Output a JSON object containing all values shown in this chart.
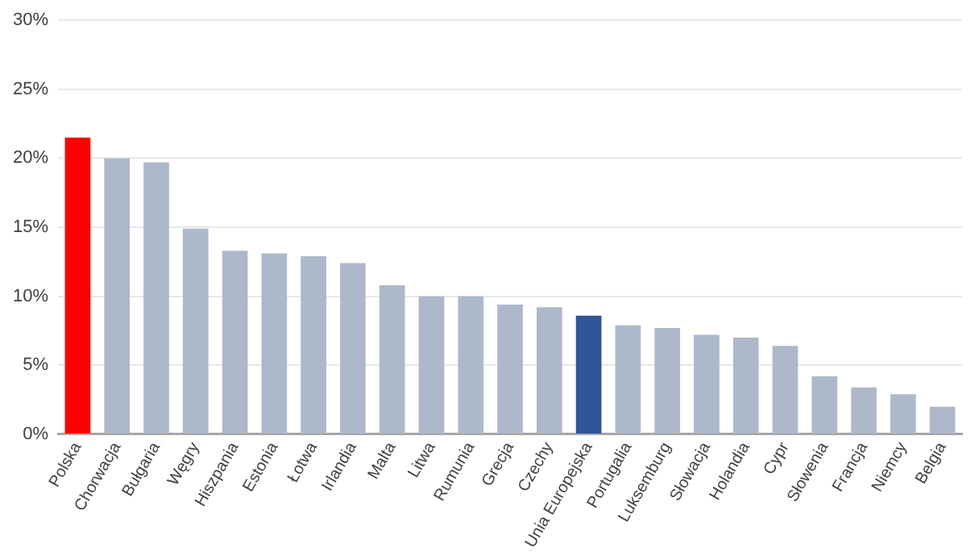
{
  "chart_data": {
    "type": "bar",
    "categories": [
      "Polska",
      "Chorwacja",
      "Bułgaria",
      "Węgry",
      "Hiszpania",
      "Estonia",
      "Łotwa",
      "Irlandia",
      "Malta",
      "Litwa",
      "Rumunia",
      "Grecja",
      "Czechy",
      "Unia Europejska",
      "Portugalia",
      "Luksemburg",
      "Słowacja",
      "Holandia",
      "Cypr",
      "Słowenia",
      "Francja",
      "Niemcy",
      "Belgia"
    ],
    "values": [
      21.5,
      20,
      19.7,
      14.9,
      13.3,
      13.1,
      12.9,
      12.4,
      10.8,
      10,
      10,
      9.4,
      9.2,
      8.6,
      7.9,
      7.7,
      7.2,
      7,
      6.4,
      4.2,
      3.4,
      2.9,
      2
    ],
    "colors": [
      "#ff0000",
      "#adb9ca",
      "#adb9ca",
      "#adb9ca",
      "#adb9ca",
      "#adb9ca",
      "#adb9ca",
      "#adb9ca",
      "#adb9ca",
      "#adb9ca",
      "#adb9ca",
      "#adb9ca",
      "#adb9ca",
      "#2f5597",
      "#adb9ca",
      "#adb9ca",
      "#adb9ca",
      "#adb9ca",
      "#adb9ca",
      "#adb9ca",
      "#adb9ca",
      "#adb9ca",
      "#adb9ca"
    ],
    "ylim": [
      0,
      30
    ],
    "yticks": [
      {
        "value": 0,
        "label": "0%"
      },
      {
        "value": 5,
        "label": "5%"
      },
      {
        "value": 10,
        "label": "10%"
      },
      {
        "value": 15,
        "label": "15%"
      },
      {
        "value": 20,
        "label": "20%"
      },
      {
        "value": 25,
        "label": "25%"
      },
      {
        "value": 30,
        "label": "30%"
      }
    ],
    "grid": "y",
    "legend": false
  }
}
